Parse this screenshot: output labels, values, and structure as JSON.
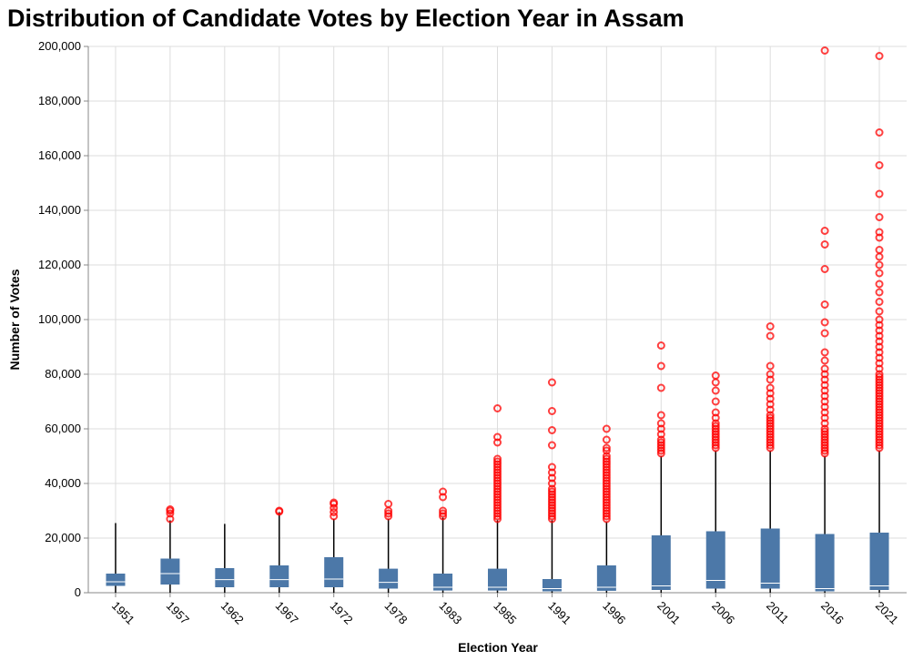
{
  "chart_data": {
    "type": "boxplot",
    "title": "Distribution of Candidate Votes by Election Year in Assam",
    "xlabel": "Election Year",
    "ylabel": "Number of Votes",
    "ylim": [
      0,
      200000
    ],
    "yticks": [
      0,
      20000,
      40000,
      60000,
      80000,
      100000,
      120000,
      140000,
      160000,
      180000,
      200000
    ],
    "ytick_labels": [
      "0",
      "20,000",
      "40,000",
      "60,000",
      "80,000",
      "100,000",
      "120,000",
      "140,000",
      "160,000",
      "180,000",
      "200,000"
    ],
    "grid": true,
    "colors": {
      "box": "#4c78a8",
      "median": "#ffffff",
      "whisker": "#000000",
      "outlier": "#ff0000",
      "grid": "#dddddd"
    },
    "categories": [
      "1951",
      "1957",
      "1962",
      "1967",
      "1972",
      "1978",
      "1983",
      "1985",
      "1991",
      "1996",
      "2001",
      "2006",
      "2011",
      "2016",
      "2021"
    ],
    "boxes": [
      {
        "year": "1951",
        "min": 0,
        "q1": 2500,
        "median": 4000,
        "q3": 7000,
        "max": 25500,
        "outliers": []
      },
      {
        "year": "1957",
        "min": 0,
        "q1": 3000,
        "median": 7000,
        "q3": 12500,
        "max": 26500,
        "outliers": [
          27000,
          29000,
          30000,
          30500
        ]
      },
      {
        "year": "1962",
        "min": 0,
        "q1": 2000,
        "median": 4800,
        "q3": 9000,
        "max": 25200,
        "outliers": []
      },
      {
        "year": "1967",
        "min": 0,
        "q1": 2000,
        "median": 4800,
        "q3": 10000,
        "max": 29500,
        "outliers": [
          29700,
          30000
        ]
      },
      {
        "year": "1972",
        "min": 0,
        "q1": 2000,
        "median": 5000,
        "q3": 13000,
        "max": 27000,
        "outliers": [
          28000,
          29500,
          31000,
          32500,
          33000
        ]
      },
      {
        "year": "1978",
        "min": 0,
        "q1": 1500,
        "median": 3800,
        "q3": 8800,
        "max": 27000,
        "outliers": [
          28000,
          29000,
          30000,
          32500
        ]
      },
      {
        "year": "1983",
        "min": 0,
        "q1": 800,
        "median": 2000,
        "q3": 7000,
        "max": 27500,
        "outliers": [
          28000,
          29000,
          30000,
          35000,
          37000
        ]
      },
      {
        "year": "1985",
        "min": 0,
        "q1": 800,
        "median": 2000,
        "q3": 8800,
        "max": 26500,
        "outliers": [
          27000,
          28000,
          29000,
          30000,
          31000,
          32000,
          33000,
          34000,
          35000,
          36000,
          37000,
          38000,
          39000,
          40000,
          41000,
          42000,
          43000,
          44000,
          45000,
          46000,
          47000,
          48000,
          49000,
          55000,
          57000,
          67500
        ]
      },
      {
        "year": "1991",
        "min": 0,
        "q1": 500,
        "median": 1500,
        "q3": 5000,
        "max": 26500,
        "outliers": [
          27000,
          28000,
          29000,
          30000,
          31000,
          32000,
          33000,
          34000,
          35000,
          36000,
          37000,
          38000,
          40000,
          42000,
          44000,
          46000,
          54000,
          59500,
          66500,
          77000
        ]
      },
      {
        "year": "1996",
        "min": 0,
        "q1": 700,
        "median": 2000,
        "q3": 10000,
        "max": 26000,
        "outliers": [
          27000,
          28000,
          29000,
          30000,
          31000,
          32000,
          33000,
          34000,
          35000,
          36000,
          37000,
          38000,
          39000,
          40000,
          41000,
          42000,
          43000,
          44000,
          45000,
          46000,
          47000,
          48000,
          49000,
          50000,
          52000,
          53000,
          56000,
          60000
        ]
      },
      {
        "year": "2001",
        "min": 0,
        "q1": 1000,
        "median": 2500,
        "q3": 21000,
        "max": 50000,
        "outliers": [
          51000,
          52000,
          53000,
          54000,
          55000,
          56000,
          58000,
          60000,
          62000,
          65000,
          75000,
          83000,
          90500
        ]
      },
      {
        "year": "2006",
        "min": 0,
        "q1": 1500,
        "median": 4500,
        "q3": 22500,
        "max": 52000,
        "outliers": [
          53000,
          54000,
          55000,
          56000,
          57000,
          58000,
          59000,
          60000,
          61000,
          62000,
          64000,
          66000,
          70000,
          74000,
          77000,
          79500
        ]
      },
      {
        "year": "2011",
        "min": 0,
        "q1": 1500,
        "median": 3500,
        "q3": 23500,
        "max": 52000,
        "outliers": [
          53000,
          54000,
          55000,
          56000,
          57000,
          58000,
          59000,
          60000,
          61000,
          62000,
          63000,
          64000,
          65000,
          67000,
          69000,
          71000,
          73000,
          75000,
          78000,
          80000,
          83000,
          94000,
          97500
        ]
      },
      {
        "year": "2016",
        "min": 0,
        "q1": 500,
        "median": 1500,
        "q3": 21500,
        "max": 50000,
        "outliers": [
          51000,
          52000,
          53000,
          54000,
          55000,
          56000,
          57000,
          58000,
          59000,
          60000,
          62000,
          64000,
          66000,
          68000,
          70000,
          72000,
          74000,
          76000,
          78000,
          80000,
          82000,
          85000,
          88000,
          95000,
          99000,
          105500,
          118500,
          127500,
          132500,
          198500
        ]
      },
      {
        "year": "2021",
        "min": 0,
        "q1": 1000,
        "median": 2500,
        "q3": 22000,
        "max": 52000,
        "outliers": [
          53000,
          54000,
          55000,
          56000,
          57000,
          58000,
          59000,
          60000,
          61000,
          62000,
          63000,
          64000,
          65000,
          66000,
          67000,
          68000,
          69000,
          70000,
          71000,
          72000,
          73000,
          74000,
          75000,
          76000,
          77000,
          78000,
          79000,
          80000,
          82000,
          84000,
          86000,
          88000,
          90000,
          92000,
          94000,
          96000,
          98000,
          100000,
          103000,
          106500,
          110000,
          113000,
          117000,
          120000,
          123000,
          125500,
          130000,
          132000,
          137500,
          146000,
          156500,
          168500,
          196500
        ]
      }
    ]
  }
}
